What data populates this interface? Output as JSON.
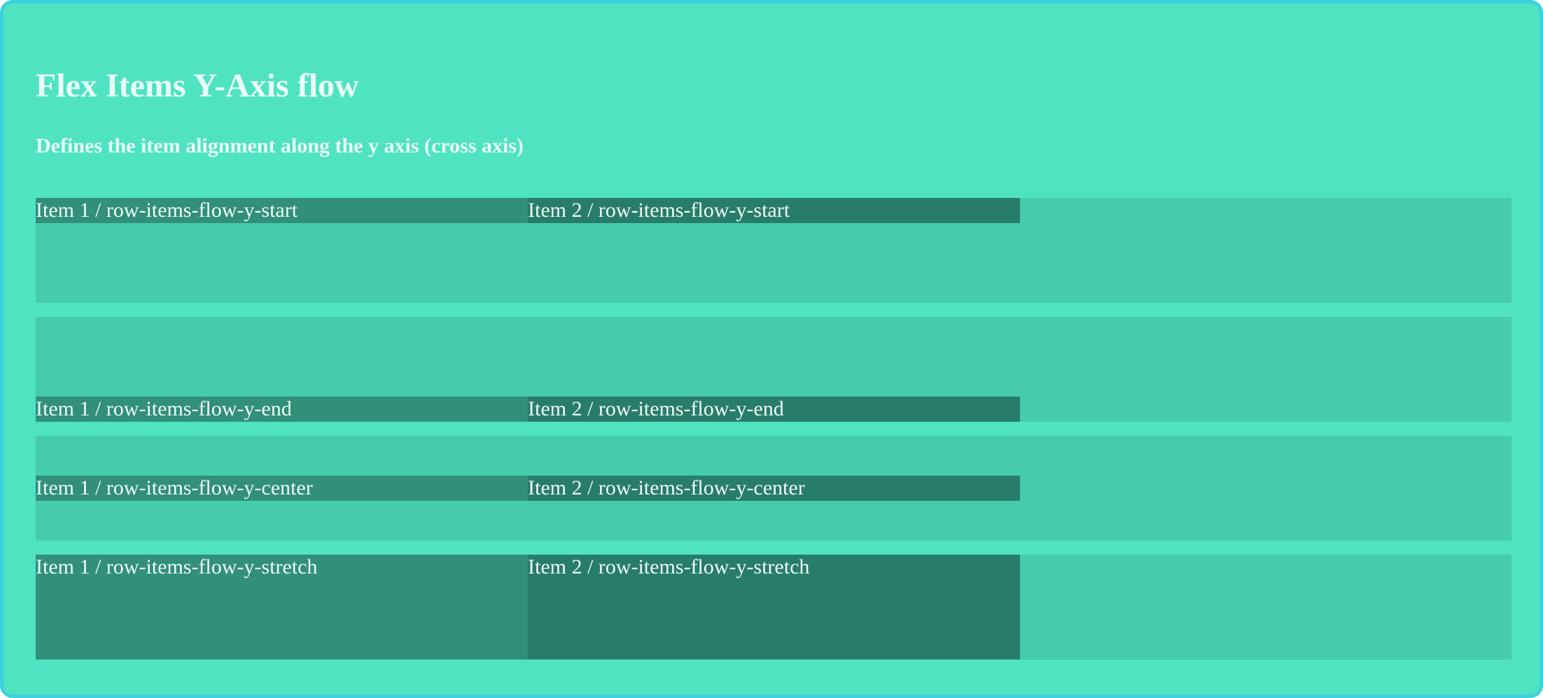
{
  "header": {
    "title": "Flex Items Y-Axis flow",
    "subtitle": "Defines the item alignment along the y axis (cross axis)"
  },
  "rows": [
    {
      "variant": "row-items-flow-y-start",
      "items": [
        "Item 1 / row-items-flow-y-start",
        "Item 2 / row-items-flow-y-start"
      ]
    },
    {
      "variant": "row-items-flow-y-end",
      "items": [
        "Item 1 / row-items-flow-y-end",
        "Item 2 / row-items-flow-y-end"
      ]
    },
    {
      "variant": "row-items-flow-y-center",
      "items": [
        "Item 1 / row-items-flow-y-center",
        "Item 2 / row-items-flow-y-center"
      ]
    },
    {
      "variant": "row-items-flow-y-stretch",
      "items": [
        "Item 1 / row-items-flow-y-stretch",
        "Item 2 / row-items-flow-y-stretch"
      ]
    }
  ],
  "colors": {
    "frame_border": "#3dd1e0",
    "background": "#4fe3c1",
    "row_background": "#46ccad",
    "item1_background": "#318f7a",
    "item2_background": "#287c6a",
    "text": "#eefcf8"
  }
}
